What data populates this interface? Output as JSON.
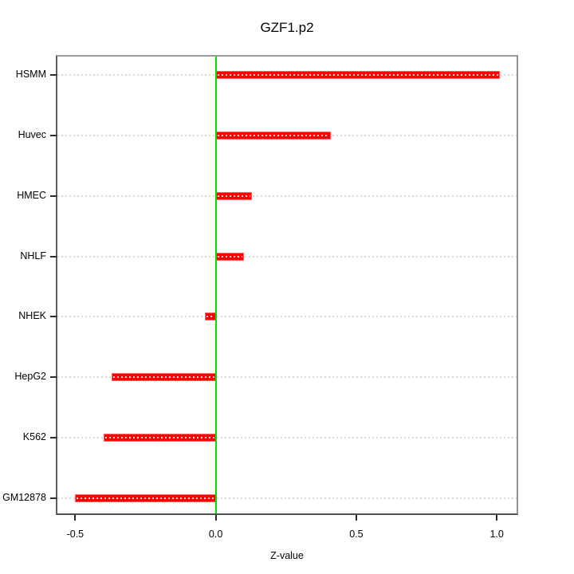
{
  "chart_data": {
    "type": "bar",
    "orientation": "horizontal",
    "title": "GZF1.p2",
    "xlabel": "Z-value",
    "categories": [
      "HSMM",
      "Huvec",
      "HMEC",
      "NHLF",
      "NHEK",
      "HepG2",
      "K562",
      "GM12878"
    ],
    "values": [
      1.01,
      0.41,
      0.13,
      0.1,
      -0.04,
      -0.37,
      -0.4,
      -0.5
    ],
    "xlim": [
      -0.5635,
      1.0705
    ],
    "x_ticks": [
      -0.5,
      0.0,
      0.5,
      1.0
    ],
    "x_tick_labels": [
      "-0.5",
      "0.0",
      "0.5",
      "1.0"
    ],
    "grid": "dotted-horizontal",
    "zero_line": true,
    "legend": "none",
    "colors": {
      "bar_fill": "#fe0000",
      "bar_border": "#ff5f5f",
      "bar_dot_overlay": "#ffd8d8",
      "zero_line": "#00e100",
      "gridline": "#d8d8d8",
      "frame": "#8f8f8f",
      "tick": "#2b2b2b",
      "text": "#000000",
      "background": "#ffffff"
    }
  }
}
